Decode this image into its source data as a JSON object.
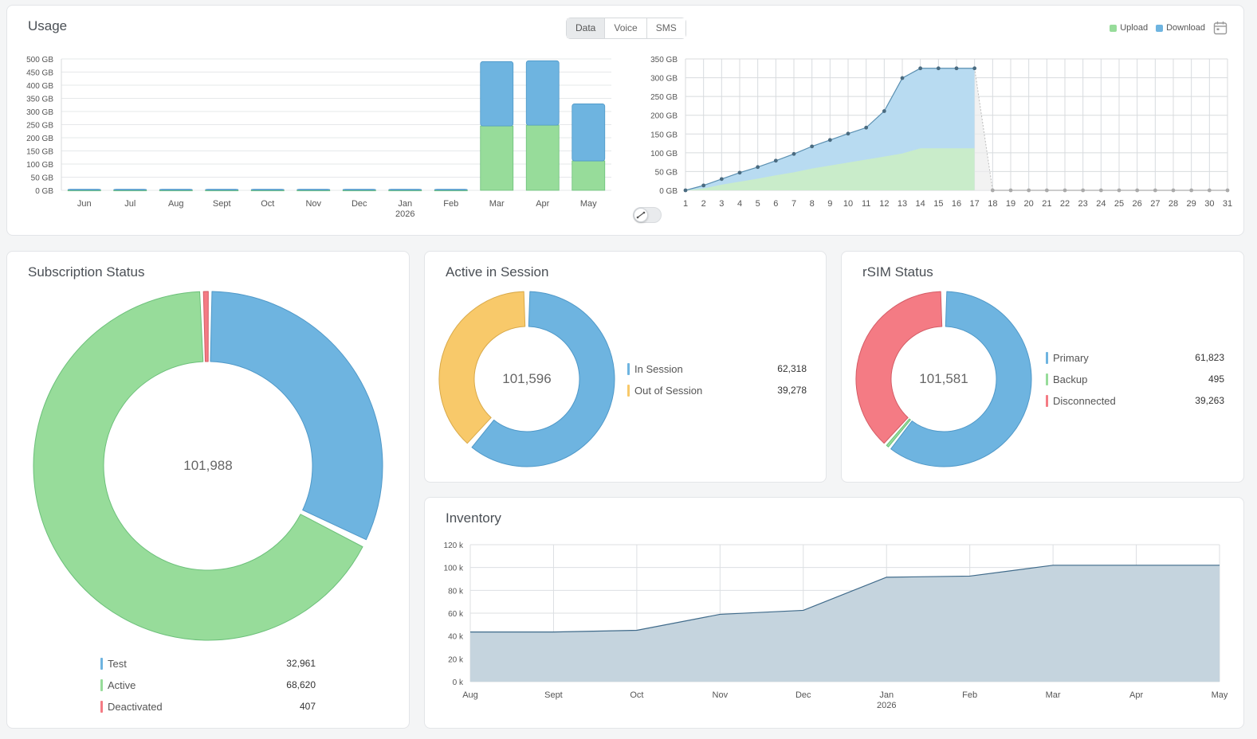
{
  "usage": {
    "title": "Usage",
    "tabs": [
      "Data",
      "Voice",
      "SMS"
    ],
    "active_tab": "Data",
    "legend": [
      {
        "label": "Upload",
        "color": "#97dc9a"
      },
      {
        "label": "Download",
        "color": "#6eb4e0"
      }
    ],
    "calendar_icon": "calendar-icon",
    "monthly_chart": {
      "type": "bar",
      "stacked": true,
      "categories": [
        "Jun",
        "Jul",
        "Aug",
        "Sept",
        "Oct",
        "Nov",
        "Dec",
        "Jan",
        "Feb",
        "Mar",
        "Apr",
        "May"
      ],
      "year_label": "2026",
      "y_ticks": [
        "0 GB",
        "50 GB",
        "100 GB",
        "150 GB",
        "200 GB",
        "250 GB",
        "300 GB",
        "350 GB",
        "400 GB",
        "450 GB",
        "500 GB"
      ],
      "ylim": [
        0,
        500
      ],
      "series": [
        {
          "name": "Upload",
          "color": "#97dc9a",
          "values": [
            1,
            1,
            1,
            1,
            1,
            1,
            1,
            1,
            1,
            245,
            248,
            112
          ]
        },
        {
          "name": "Download",
          "color": "#6eb4e0",
          "values": [
            3,
            3,
            3,
            3,
            3,
            3,
            3,
            3,
            3,
            245,
            245,
            217
          ]
        }
      ]
    },
    "daily_chart": {
      "type": "area",
      "x": [
        "1",
        "2",
        "3",
        "4",
        "5",
        "6",
        "7",
        "8",
        "9",
        "10",
        "11",
        "12",
        "13",
        "14",
        "15",
        "16",
        "17",
        "18",
        "19",
        "20",
        "21",
        "22",
        "23",
        "24",
        "25",
        "26",
        "27",
        "28",
        "29",
        "30",
        "31"
      ],
      "y_ticks": [
        "0 GB",
        "50 GB",
        "100 GB",
        "150 GB",
        "200 GB",
        "250 GB",
        "300 GB",
        "350 GB"
      ],
      "ylim": [
        0,
        350
      ],
      "series": [
        {
          "name": "Download",
          "color": "#6eb4e0",
          "values": [
            0,
            13,
            30,
            47,
            62,
            79,
            97,
            117,
            134,
            151,
            167,
            211,
            299,
            325,
            325,
            325,
            325,
            0,
            0,
            0,
            0,
            0,
            0,
            0,
            0,
            0,
            0,
            0,
            0,
            0,
            0
          ]
        },
        {
          "name": "Upload",
          "color": "#97dc9a",
          "values": [
            0,
            5,
            15,
            23,
            31,
            40,
            48,
            58,
            66,
            74,
            82,
            90,
            98,
            112,
            112,
            112,
            112,
            0,
            0,
            0,
            0,
            0,
            0,
            0,
            0,
            0,
            0,
            0,
            0,
            0,
            0
          ]
        }
      ]
    }
  },
  "subscription_status": {
    "title": "Subscription Status",
    "total": "101,988",
    "items": [
      {
        "label": "Test",
        "value": "32,961",
        "num": 32961,
        "color": "#6eb4e0"
      },
      {
        "label": "Active",
        "value": "68,620",
        "num": 68620,
        "color": "#97dc9a"
      },
      {
        "label": "Deactivated",
        "value": "407",
        "num": 407,
        "color": "#f47b84"
      }
    ]
  },
  "active_in_session": {
    "title": "Active in Session",
    "total": "101,596",
    "items": [
      {
        "label": "In Session",
        "value": "62,318",
        "num": 62318,
        "color": "#6eb4e0"
      },
      {
        "label": "Out of Session",
        "value": "39,278",
        "num": 39278,
        "color": "#f8c96a"
      }
    ]
  },
  "rsim_status": {
    "title": "rSIM Status",
    "total": "101,581",
    "items": [
      {
        "label": "Primary",
        "value": "61,823",
        "num": 61823,
        "color": "#6eb4e0"
      },
      {
        "label": "Backup",
        "value": "495",
        "num": 495,
        "color": "#97dc9a"
      },
      {
        "label": "Disconnected",
        "value": "39,263",
        "num": 39263,
        "color": "#f47b84"
      }
    ]
  },
  "inventory": {
    "title": "Inventory",
    "chart_data": {
      "type": "area",
      "categories": [
        "Aug",
        "Sept",
        "Oct",
        "Nov",
        "Dec",
        "Jan",
        "Feb",
        "Mar",
        "Apr",
        "May"
      ],
      "year_label": "2026",
      "y_ticks": [
        "0 k",
        "20 k",
        "40 k",
        "60 k",
        "80 k",
        "100 k",
        "120 k"
      ],
      "ylim": [
        0,
        120000
      ],
      "values": [
        43500,
        43500,
        45000,
        59000,
        62500,
        91500,
        92500,
        102000,
        102000,
        102000
      ],
      "color": "#c5d4de",
      "line_color": "#3f6a8a"
    }
  }
}
